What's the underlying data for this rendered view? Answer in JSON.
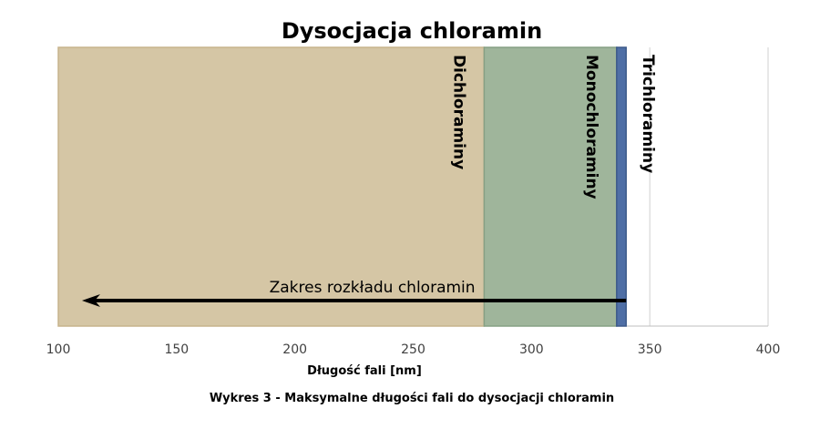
{
  "chart_data": {
    "type": "bar",
    "orientation": "horizontal-ranges",
    "title": "Dysocjacja chloramin",
    "xlabel": "Długość fali [nm]",
    "xlim": [
      100,
      400
    ],
    "xticks": [
      100,
      150,
      200,
      250,
      300,
      350,
      400
    ],
    "grid": "vertical",
    "ranges": [
      {
        "label": "Dichloraminy",
        "start": 100,
        "end": 280,
        "color": "#d5c6a5",
        "edge": "#c7b48c"
      },
      {
        "label": "Monochloraminy",
        "start": 280,
        "end": 336,
        "color": "#9fb59b",
        "edge": "#86a084"
      },
      {
        "label": "Trichloraminy",
        "start": 336,
        "end": 340,
        "color": "#4f6fa6",
        "edge": "#3d5a8a"
      }
    ],
    "annotation": {
      "text": "Zakres rozkładu chloramin",
      "from": 340,
      "to": 110
    },
    "caption": "Wykres 3 - Maksymalne długości fali do dysocjacji chloramin"
  }
}
